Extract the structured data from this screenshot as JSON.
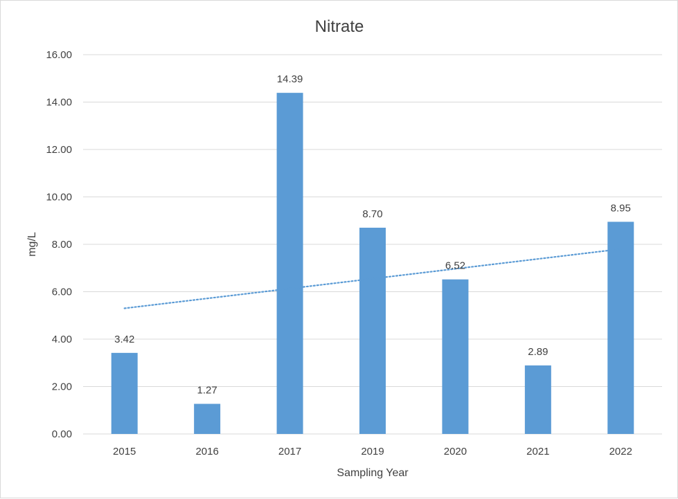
{
  "chart_data": {
    "type": "bar",
    "title": "Nitrate",
    "xlabel": "Sampling Year",
    "ylabel": "mg/L",
    "categories": [
      "2015",
      "2016",
      "2017",
      "2019",
      "2020",
      "2021",
      "2022"
    ],
    "values": [
      3.42,
      1.27,
      14.39,
      8.7,
      6.52,
      2.89,
      8.95
    ],
    "data_labels": [
      "3.42",
      "1.27",
      "14.39",
      "8.70",
      "6.52",
      "2.89",
      "8.95"
    ],
    "yticks": [
      "0.00",
      "2.00",
      "4.00",
      "6.00",
      "8.00",
      "10.00",
      "12.00",
      "14.00",
      "16.00"
    ],
    "ylim": [
      0,
      16
    ],
    "grid": true,
    "legend": "none",
    "trendline": {
      "type": "linear",
      "style": "dotted",
      "start": 5.3,
      "end": 7.8
    },
    "colors": {
      "bar": "#5b9bd5",
      "trendline": "#5b9bd5",
      "grid": "#d9d9d9",
      "text": "#404040"
    }
  }
}
